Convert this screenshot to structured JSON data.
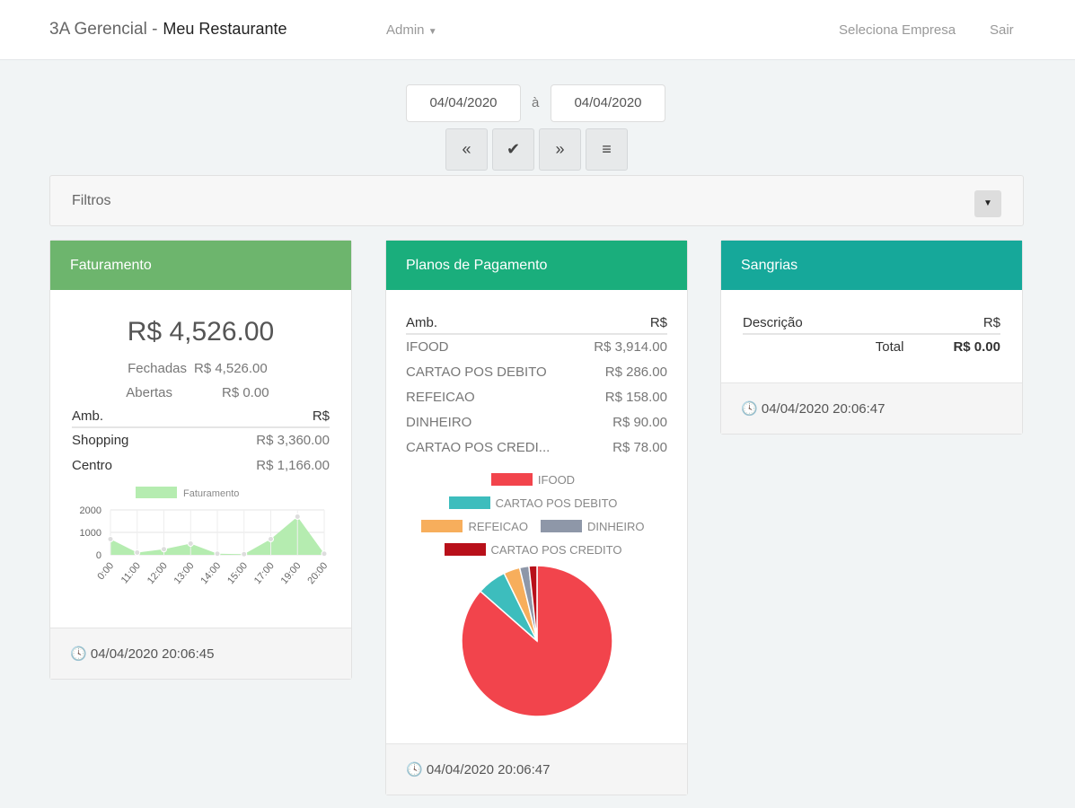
{
  "nav": {
    "brand": "3A Gerencial -",
    "restaurant": "Meu Restaurante",
    "admin": "Admin",
    "select_company": "Seleciona Empresa",
    "logout": "Sair"
  },
  "dates": {
    "from": "04/04/2020",
    "sep": "à",
    "to": "04/04/2020"
  },
  "buttons": {
    "prev": "«",
    "confirm": "✔",
    "next": "»",
    "menu": "≡"
  },
  "filters": {
    "label": "Filtros",
    "toggle": "▼"
  },
  "faturamento": {
    "title": "Faturamento",
    "color": "#6db56d",
    "total": "R$ 4,526.00",
    "fechadas_label": "Fechadas",
    "fechadas": "R$ 4,526.00",
    "abertas_label": "Abertas",
    "abertas": "R$ 0.00",
    "headers": [
      "Amb.",
      "R$"
    ],
    "rows": [
      {
        "name": "Shopping",
        "value": "R$ 3,360.00"
      },
      {
        "name": "Centro",
        "value": "R$ 1,166.00"
      }
    ],
    "timestamp": "04/04/2020 20:06:45"
  },
  "planos": {
    "title": "Planos de Pagamento",
    "color": "#1aae7c",
    "headers": [
      "Amb.",
      "R$"
    ],
    "rows": [
      {
        "name": "IFOOD",
        "value": "R$ 3,914.00"
      },
      {
        "name": "CARTAO POS DEBITO",
        "value": "R$ 286.00"
      },
      {
        "name": "REFEICAO",
        "value": "R$ 158.00"
      },
      {
        "name": "DINHEIRO",
        "value": "R$ 90.00"
      },
      {
        "name": "CARTAO POS CREDI...",
        "value": "R$ 78.00"
      }
    ],
    "timestamp": "04/04/2020 20:06:47"
  },
  "sangrias": {
    "title": "Sangrias",
    "color": "#16a89a",
    "headers": [
      "Descrição",
      "R$"
    ],
    "total_label": "Total",
    "total": "R$ 0.00",
    "timestamp": "04/04/2020 20:06:47"
  },
  "chart_data": [
    {
      "type": "area",
      "legend": "Faturamento",
      "x": [
        "0:00",
        "11:00",
        "12:00",
        "13:00",
        "14:00",
        "15:00",
        "17:00",
        "19:00",
        "20:00"
      ],
      "values": [
        700,
        100,
        250,
        500,
        50,
        30,
        700,
        1700,
        50
      ],
      "ylim": [
        0,
        2000
      ],
      "yticks": [
        "2000",
        "1000",
        "0"
      ],
      "color": "#b5ecb0"
    },
    {
      "type": "pie",
      "labels": [
        "IFOOD",
        "CARTAO POS DEBITO",
        "REFEICAO",
        "DINHEIRO",
        "CARTAO POS CREDITO"
      ],
      "values": [
        3914,
        286,
        158,
        90,
        78
      ],
      "colors": [
        "#f2444c",
        "#3dbdbd",
        "#f7ae5c",
        "#8e97a8",
        "#b8101a"
      ]
    }
  ]
}
